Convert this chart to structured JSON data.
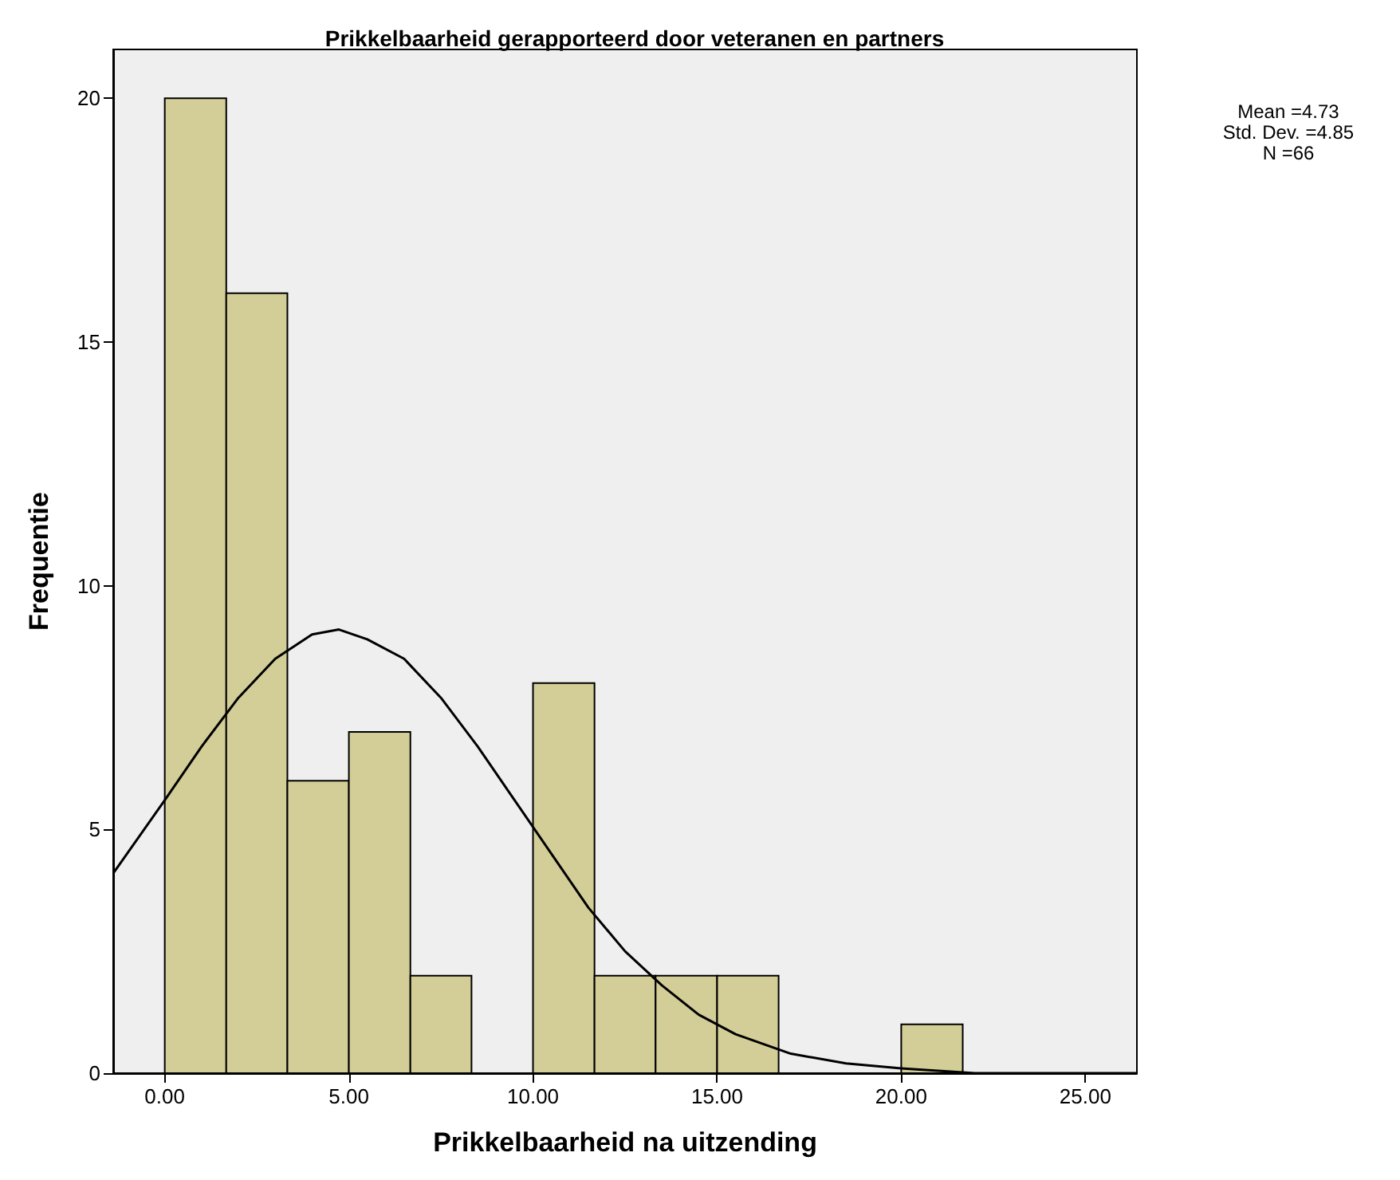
{
  "chart_data": {
    "type": "histogram",
    "title": "Prikkelbaarheid gerapporteerd door veteranen en partners",
    "xlabel": "Prikkelbaarheid na uitzending",
    "ylabel": "Frequentie",
    "bins": [
      0,
      1.67,
      3.33,
      5,
      6.67,
      8.33,
      10,
      11.67,
      13.33,
      15,
      16.67,
      18.33,
      20,
      21.67
    ],
    "values": [
      20,
      16,
      6,
      7,
      2,
      0,
      8,
      2,
      2,
      2,
      0,
      0,
      1
    ],
    "color": "#d3ce97",
    "series": [
      {
        "type": "line",
        "color": "#000000",
        "x": [
          -1.4,
          0,
          1,
          2,
          3,
          4,
          4.73,
          5.5,
          6.5,
          7.5,
          8.5,
          9.5,
          10.5,
          11.5,
          12.5,
          13.5,
          14.5,
          15.5,
          17,
          18.5,
          20,
          22,
          24,
          26.4
        ],
        "values": [
          4.1,
          5.6,
          6.7,
          7.7,
          8.5,
          9.0,
          9.1,
          8.9,
          8.5,
          7.7,
          6.7,
          5.6,
          4.5,
          3.4,
          2.5,
          1.8,
          1.2,
          0.8,
          0.4,
          0.2,
          0.1,
          0,
          0,
          0
        ]
      }
    ],
    "xlim": [
      -1.4,
      26.4
    ],
    "xticks": [
      {
        "value": 0,
        "label": "0.00"
      },
      {
        "value": 5,
        "label": "5.00"
      },
      {
        "value": 10,
        "label": "10.00"
      },
      {
        "value": 15,
        "label": "15.00"
      },
      {
        "value": 20,
        "label": "20.00"
      },
      {
        "value": 25,
        "label": "25.00"
      }
    ],
    "ylim": [
      0,
      21
    ],
    "yticks": [
      0,
      5,
      10,
      15,
      20
    ],
    "annotations": [
      "Mean =4.73",
      "Std. Dev. =4.85",
      "N =66"
    ],
    "grid": false
  }
}
